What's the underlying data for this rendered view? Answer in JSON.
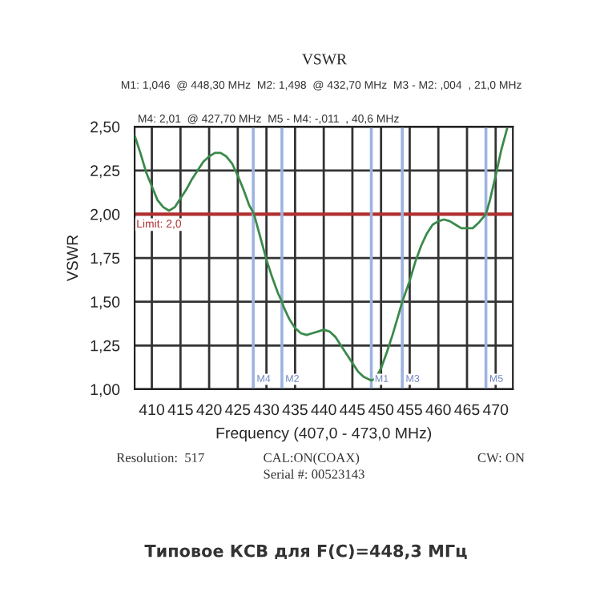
{
  "chart_data": {
    "type": "line",
    "title": "VSWR",
    "xlabel": "Frequency (407,0 - 473,0 MHz)",
    "ylabel": "VSWR",
    "x": [
      407,
      408,
      409,
      410,
      411,
      412,
      413,
      414,
      415,
      416,
      417,
      418,
      419,
      420,
      421,
      422,
      423,
      424,
      425,
      426,
      427,
      427.7,
      428,
      429,
      430,
      431,
      432,
      432.7,
      433,
      434,
      435,
      436,
      437,
      438,
      439,
      440,
      441,
      442,
      443,
      444,
      445,
      446,
      447,
      448.3,
      449,
      450,
      451,
      452,
      453,
      453.7,
      455,
      456,
      457,
      458,
      459,
      460,
      461,
      462,
      463,
      464,
      465,
      466,
      467,
      468.3,
      469,
      470,
      471,
      472
    ],
    "series": [
      {
        "color": "#3a8a4a",
        "values": [
          2.45,
          2.35,
          2.24,
          2.16,
          2.08,
          2.04,
          2.02,
          2.04,
          2.09,
          2.14,
          2.2,
          2.25,
          2.3,
          2.33,
          2.35,
          2.35,
          2.33,
          2.29,
          2.22,
          2.14,
          2.05,
          2.01,
          1.98,
          1.86,
          1.74,
          1.64,
          1.55,
          1.5,
          1.47,
          1.4,
          1.35,
          1.32,
          1.31,
          1.32,
          1.33,
          1.34,
          1.33,
          1.3,
          1.25,
          1.2,
          1.15,
          1.1,
          1.07,
          1.05,
          1.06,
          1.12,
          1.21,
          1.31,
          1.42,
          1.5,
          1.62,
          1.73,
          1.82,
          1.89,
          1.94,
          1.96,
          1.97,
          1.96,
          1.94,
          1.92,
          1.92,
          1.92,
          1.95,
          2.0,
          2.08,
          2.22,
          2.37,
          2.49
        ]
      }
    ],
    "xlim": [
      407,
      473
    ],
    "ylim": [
      1.0,
      2.5
    ],
    "xticks": [
      410,
      415,
      420,
      425,
      430,
      435,
      440,
      445,
      450,
      455,
      460,
      465,
      470
    ],
    "yticks": [
      {
        "value": 1.0,
        "label": "1,00"
      },
      {
        "value": 1.25,
        "label": "1,25"
      },
      {
        "value": 1.5,
        "label": "1,50"
      },
      {
        "value": 1.75,
        "label": "1,75"
      },
      {
        "value": 2.0,
        "label": "2,00"
      },
      {
        "value": 2.25,
        "label": "2,25"
      },
      {
        "value": 2.5,
        "label": "2,50"
      }
    ],
    "grid": true,
    "legend": false,
    "marker": "none",
    "line_style": "solid",
    "ref_lines": [
      {
        "axis": "y",
        "value": 2.0,
        "label": "Limit: 2,0",
        "color": "#b03030"
      },
      {
        "axis": "x",
        "value": 427.7,
        "label": "M4",
        "color": "#9db3e0"
      },
      {
        "axis": "x",
        "value": 432.7,
        "label": "M2",
        "color": "#9db3e0"
      },
      {
        "axis": "x",
        "value": 448.3,
        "label": "M1",
        "color": "#9db3e0"
      },
      {
        "axis": "x",
        "value": 453.7,
        "label": "M3",
        "color": "#9db3e0"
      },
      {
        "axis": "x",
        "value": 468.3,
        "label": "M5",
        "color": "#9db3e0"
      }
    ],
    "annotations": [
      "M1: 1,046  @ 448,30 MHz  M2: 1,498  @ 432,70 MHz  M3 - M2: ,004  , 21,0 MHz",
      "M4: 2,01  @ 427,70 MHz  M5 - M4: -,011  , 40,6 MHz",
      "Resolution:  517",
      "CAL:ON(COAX)",
      "CW: ON",
      "Serial #: 00523143",
      "Типовое КСВ для F(C)=448,3 МГц"
    ]
  }
}
